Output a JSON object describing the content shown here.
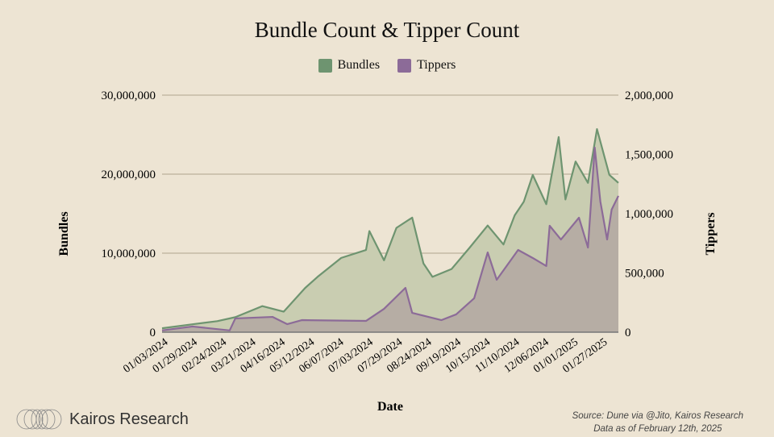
{
  "chart_data": {
    "type": "area",
    "title": "Bundle Count & Tipper Count",
    "xlabel": "Date",
    "ylabel_left": "Bundles",
    "ylabel_right": "Tippers",
    "ylim_left": [
      0,
      30000000
    ],
    "ylim_right": [
      0,
      2000000
    ],
    "yticks_left": [
      "0",
      "10,000,000",
      "20,000,000",
      "30,000,000"
    ],
    "yticks_right": [
      "0",
      "500,000",
      "1,000,000",
      "1,500,000",
      "2,000,000"
    ],
    "xlim": [
      "2024-01-03",
      "2025-02-11"
    ],
    "xticks": [
      "01/03/2024",
      "01/29/2024",
      "02/24/2024",
      "03/21/2024",
      "04/16/2024",
      "05/12/2024",
      "06/07/2024",
      "07/03/2024",
      "07/29/2024",
      "08/24/2024",
      "09/19/2024",
      "10/15/2024",
      "11/10/2024",
      "12/06/2024",
      "01/01/2025",
      "01/27/2025"
    ],
    "grid": true,
    "legend_position": "top",
    "series": [
      {
        "name": "Bundles",
        "axis": "left",
        "color": "#6e9470",
        "fill": "#c9cdb1",
        "points": [
          [
            "2024-01-03",
            500000
          ],
          [
            "2024-01-30",
            1000000
          ],
          [
            "2024-02-21",
            1400000
          ],
          [
            "2024-03-08",
            1900000
          ],
          [
            "2024-04-01",
            3300000
          ],
          [
            "2024-04-20",
            2600000
          ],
          [
            "2024-05-09",
            5600000
          ],
          [
            "2024-05-20",
            7000000
          ],
          [
            "2024-06-10",
            9400000
          ],
          [
            "2024-07-02",
            10400000
          ],
          [
            "2024-07-05",
            12800000
          ],
          [
            "2024-07-18",
            9100000
          ],
          [
            "2024-07-29",
            13200000
          ],
          [
            "2024-08-12",
            14500000
          ],
          [
            "2024-08-22",
            8700000
          ],
          [
            "2024-08-30",
            7000000
          ],
          [
            "2024-09-16",
            8000000
          ],
          [
            "2024-10-02",
            10700000
          ],
          [
            "2024-10-18",
            13500000
          ],
          [
            "2024-11-01",
            11100000
          ],
          [
            "2024-11-11",
            14800000
          ],
          [
            "2024-11-19",
            16500000
          ],
          [
            "2024-11-27",
            19900000
          ],
          [
            "2024-12-09",
            16200000
          ],
          [
            "2024-12-20",
            24700000
          ],
          [
            "2024-12-26",
            16800000
          ],
          [
            "2025-01-04",
            21600000
          ],
          [
            "2025-01-15",
            18900000
          ],
          [
            "2025-01-23",
            25700000
          ],
          [
            "2025-02-03",
            19900000
          ],
          [
            "2025-02-11",
            18900000
          ]
        ]
      },
      {
        "name": "Tippers",
        "axis": "right",
        "color": "#8c6b98",
        "fill": "#b6ada4",
        "points": [
          [
            "2024-01-03",
            15000
          ],
          [
            "2024-01-30",
            48000
          ],
          [
            "2024-03-03",
            15000
          ],
          [
            "2024-03-08",
            116000
          ],
          [
            "2024-04-10",
            129000
          ],
          [
            "2024-04-23",
            68000
          ],
          [
            "2024-05-06",
            102000
          ],
          [
            "2024-07-02",
            95000
          ],
          [
            "2024-07-18",
            197000
          ],
          [
            "2024-08-06",
            374000
          ],
          [
            "2024-08-12",
            163000
          ],
          [
            "2024-09-07",
            102000
          ],
          [
            "2024-09-20",
            150000
          ],
          [
            "2024-10-06",
            286000
          ],
          [
            "2024-10-18",
            673000
          ],
          [
            "2024-10-26",
            442000
          ],
          [
            "2024-11-14",
            694000
          ],
          [
            "2024-11-27",
            626000
          ],
          [
            "2024-12-09",
            558000
          ],
          [
            "2024-12-12",
            898000
          ],
          [
            "2024-12-22",
            782000
          ],
          [
            "2025-01-07",
            966000
          ],
          [
            "2025-01-15",
            714000
          ],
          [
            "2025-01-21",
            1558000
          ],
          [
            "2025-01-26",
            1102000
          ],
          [
            "2025-02-01",
            782000
          ],
          [
            "2025-02-05",
            1034000
          ],
          [
            "2025-02-11",
            1150000
          ]
        ]
      }
    ]
  },
  "footer": {
    "logo_text": "Kairos Research",
    "source_line1": "Source: Dune via @Jito, Kairos Research",
    "source_line2": "Data as of February 12th, 2025"
  }
}
